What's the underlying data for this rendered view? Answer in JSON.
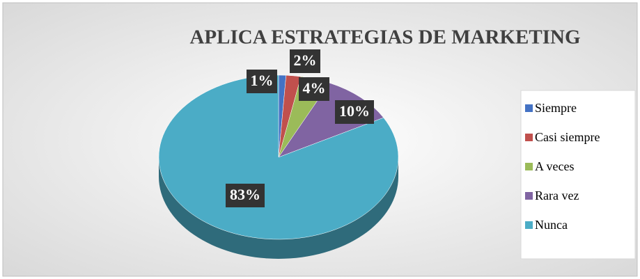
{
  "chart_data": {
    "type": "pie",
    "title": "APLICA ESTRATEGIAS DE MARKETING",
    "categories": [
      "Siempre",
      "Casi siempre",
      "A veces",
      "Rara vez",
      "Nunca"
    ],
    "values": [
      1,
      2,
      4,
      10,
      83
    ],
    "value_labels": [
      "1%",
      "2%",
      "4%",
      "10%",
      "83%"
    ],
    "colors": [
      "#4472c4",
      "#c0504d",
      "#9bbb59",
      "#8064a2",
      "#4bacc6"
    ],
    "legend": "right"
  }
}
